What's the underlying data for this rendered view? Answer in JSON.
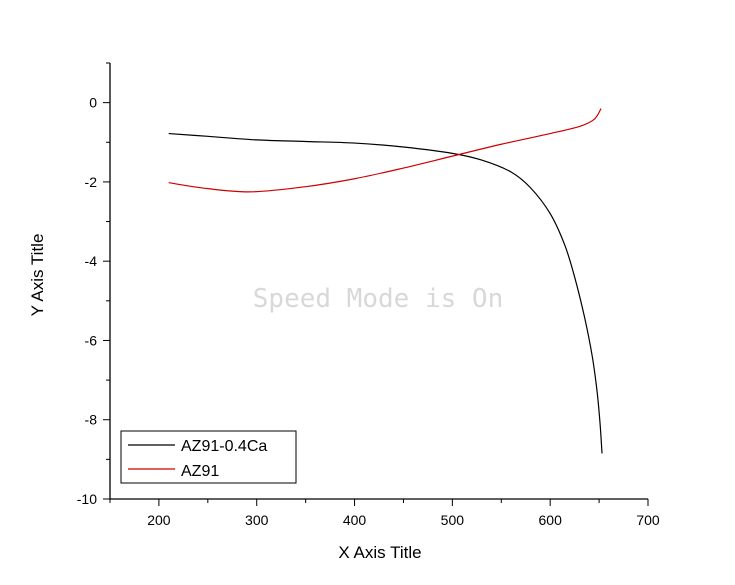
{
  "chart_data": {
    "type": "line",
    "xlabel": "X Axis Title",
    "ylabel": "Y Axis Title",
    "xlim": [
      150,
      700
    ],
    "ylim": [
      -10,
      1
    ],
    "xticks": [
      200,
      300,
      400,
      500,
      600,
      700
    ],
    "yticks": [
      0,
      -2,
      -4,
      -6,
      -8,
      -10
    ],
    "grid": false,
    "legend_position": "bottom-left",
    "watermark": "Speed Mode is On",
    "series": [
      {
        "name": "AZ91-0.4Ca",
        "color": "#000000",
        "points": [
          [
            210,
            -0.78
          ],
          [
            250,
            -0.85
          ],
          [
            300,
            -0.94
          ],
          [
            350,
            -0.98
          ],
          [
            400,
            -1.02
          ],
          [
            450,
            -1.12
          ],
          [
            500,
            -1.28
          ],
          [
            530,
            -1.45
          ],
          [
            560,
            -1.75
          ],
          [
            580,
            -2.15
          ],
          [
            600,
            -2.8
          ],
          [
            615,
            -3.6
          ],
          [
            625,
            -4.4
          ],
          [
            635,
            -5.4
          ],
          [
            643,
            -6.4
          ],
          [
            648,
            -7.3
          ],
          [
            651,
            -8.1
          ],
          [
            653,
            -8.85
          ]
        ]
      },
      {
        "name": "AZ91",
        "color": "#cc0000",
        "points": [
          [
            210,
            -2.02
          ],
          [
            250,
            -2.17
          ],
          [
            295,
            -2.25
          ],
          [
            350,
            -2.12
          ],
          [
            400,
            -1.92
          ],
          [
            450,
            -1.65
          ],
          [
            500,
            -1.35
          ],
          [
            550,
            -1.05
          ],
          [
            600,
            -0.78
          ],
          [
            630,
            -0.6
          ],
          [
            645,
            -0.42
          ],
          [
            652,
            -0.15
          ]
        ]
      }
    ]
  }
}
